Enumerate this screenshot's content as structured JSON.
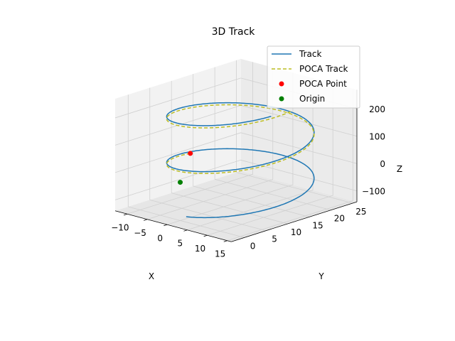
{
  "chart_data": {
    "type": "line",
    "projection": "3d",
    "title": "3D Track",
    "xlabel": "X",
    "ylabel": "Y",
    "zlabel": "Z",
    "xlim": [
      -13,
      16
    ],
    "ylim": [
      -3,
      26
    ],
    "zlim": [
      -140,
      270
    ],
    "xticks": [
      "−10",
      "−5",
      "0",
      "5",
      "10",
      "15"
    ],
    "yticks": [
      "0",
      "5",
      "10",
      "15",
      "20",
      "25"
    ],
    "zticks": [
      "−100",
      "0",
      "100",
      "200"
    ],
    "grid": true,
    "legend_position": "top-right",
    "colors": {
      "track": "#1f77b4",
      "poca_track": "#bcbd22",
      "poca_point": "#ff0000",
      "origin": "#008000"
    },
    "series": [
      {
        "name": "Track",
        "kind": "helix",
        "center_x": 1.5,
        "center_y": 12.5,
        "radius": 12.5,
        "z_start": -120,
        "z_end": 250,
        "turns": 2.2,
        "phase_start_deg": 270
      },
      {
        "name": "POCA Track",
        "kind": "helix",
        "center_x": 1.5,
        "center_y": 12.5,
        "radius": 12.5,
        "z_start": 0,
        "z_end": 250,
        "turns": 1.5,
        "phase_start_deg": 180,
        "style": "dashed"
      },
      {
        "name": "POCA Point",
        "kind": "point",
        "x": -11,
        "y": 12.5,
        "z": 0
      },
      {
        "name": "Origin",
        "kind": "point",
        "x": 0,
        "y": 0,
        "z": 0
      }
    ]
  }
}
